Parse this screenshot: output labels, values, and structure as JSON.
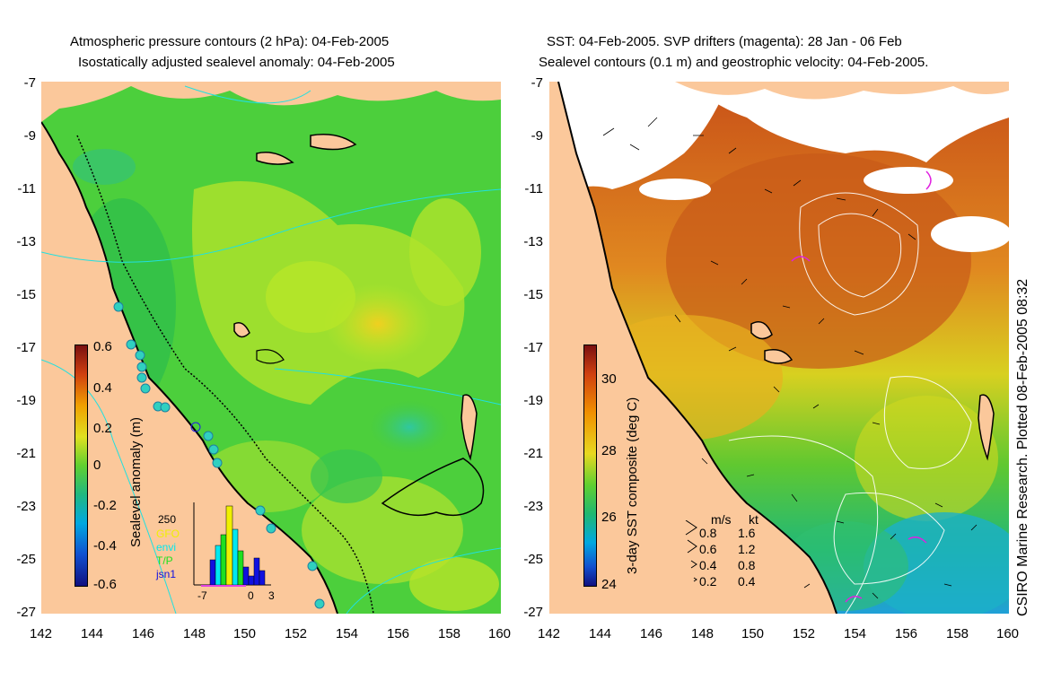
{
  "left_panel": {
    "title_line1": "Atmospheric pressure contours (2 hPa): 04-Feb-2005",
    "title_line2": "Isostatically adjusted sealevel anomaly: 04-Feb-2005",
    "colorbar_label": "Sealevel anomaly (m)",
    "colorbar_ticks": [
      "0.6",
      "0.4",
      "0.2",
      "0",
      "-0.2",
      "-0.4",
      "-0.6"
    ],
    "histogram": {
      "ymax_label": "250",
      "legend": [
        {
          "label": "GFO",
          "color": "#f0f000"
        },
        {
          "label": "envi",
          "color": "#00e8f0"
        },
        {
          "label": "T/P",
          "color": "#20e020"
        },
        {
          "label": "jsn1",
          "color": "#1010e0"
        }
      ],
      "x_ticks": [
        "-7",
        "0",
        "3"
      ]
    }
  },
  "right_panel": {
    "title_line1": "SST: 04-Feb-2005. SVP drifters (magenta): 28 Jan - 06 Feb",
    "title_line2": "Sealevel contours (0.1 m) and geostrophic velocity: 04-Feb-2005.",
    "colorbar_label": "3-day SST composite (deg C)",
    "colorbar_ticks": [
      "30",
      "28",
      "26",
      "24"
    ],
    "velocity_legend": {
      "header_ms": "m/s",
      "header_kt": "kt",
      "rows": [
        {
          "ms": "0.8",
          "kt": "1.6"
        },
        {
          "ms": "0.6",
          "kt": "1.2"
        },
        {
          "ms": "0.4",
          "kt": "0.8"
        },
        {
          "ms": "0.2",
          "kt": "0.4"
        }
      ]
    },
    "credit": "CSIRO Marine Research. Plotted 08-Feb-2005 08:32"
  },
  "axes": {
    "y_ticks": [
      "-7",
      "-9",
      "-11",
      "-13",
      "-15",
      "-17",
      "-19",
      "-21",
      "-23",
      "-25",
      "-27"
    ],
    "x_ticks": [
      "142",
      "144",
      "146",
      "148",
      "150",
      "152",
      "154",
      "156",
      "158",
      "160"
    ]
  },
  "colors": {
    "land": "#fbc89b",
    "sla_green": "#52d23a",
    "sla_yellow": "#c8ea20",
    "sst_orange": "#e07818",
    "sst_green": "#40c840",
    "cloud_white": "#ffffff"
  }
}
